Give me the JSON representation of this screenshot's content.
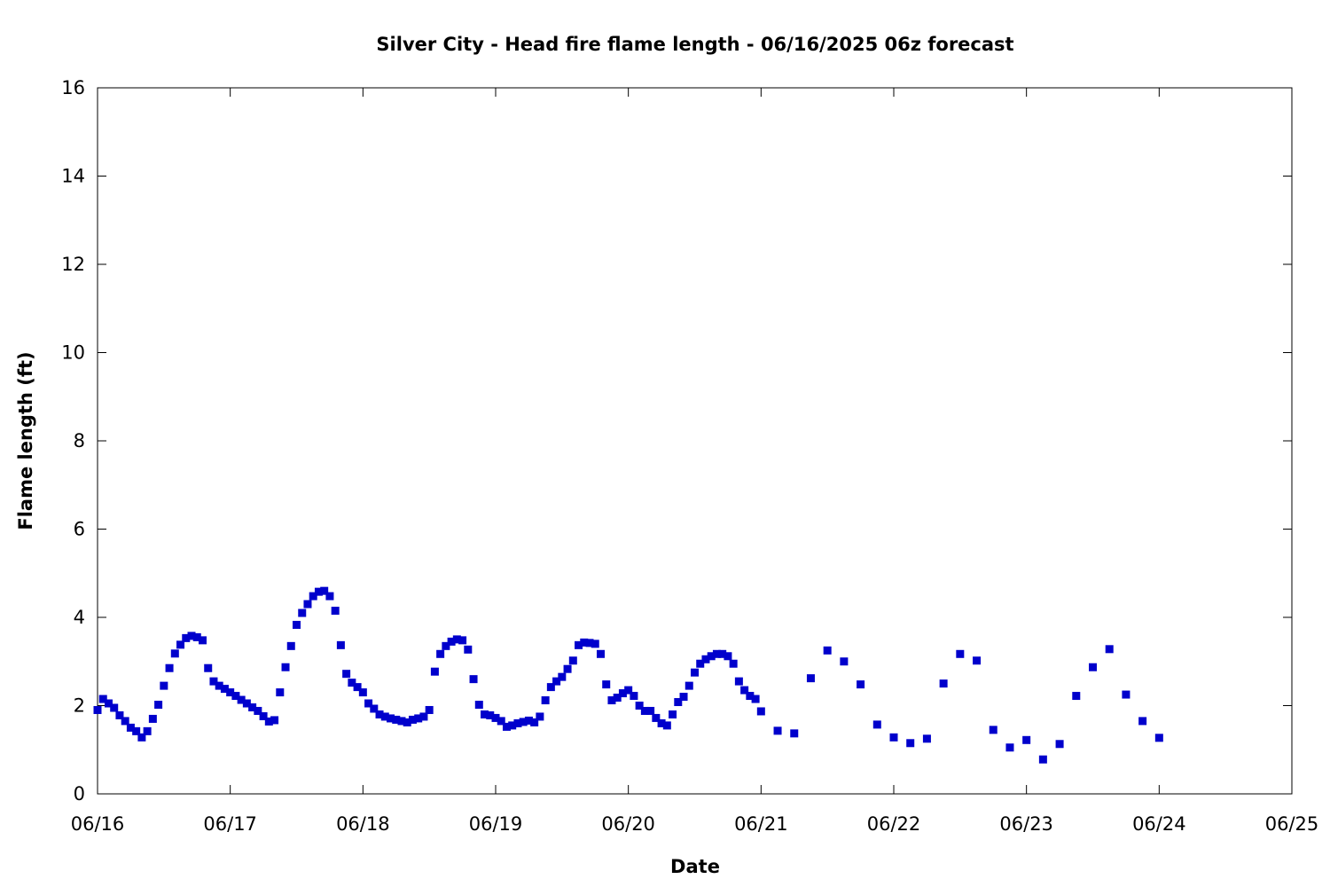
{
  "chart_data": {
    "type": "scatter",
    "title": "Silver City - Head fire flame length - 06/16/2025 06z forecast",
    "xlabel": "Date",
    "ylabel": "Flame length (ft)",
    "xlim": [
      "06/16",
      "06/25"
    ],
    "ylim": [
      0,
      16
    ],
    "x_ticks": [
      "06/16",
      "06/17",
      "06/18",
      "06/19",
      "06/20",
      "06/21",
      "06/22",
      "06/23",
      "06/24",
      "06/25"
    ],
    "y_ticks": [
      0,
      2,
      4,
      6,
      8,
      10,
      12,
      14,
      16
    ],
    "grid": false,
    "marker_color": "#0000cc",
    "series": [
      {
        "x": [
          "06/16 00z",
          "06/16 01z",
          "06/16 02z",
          "06/16 03z",
          "06/16 04z",
          "06/16 05z",
          "06/16 06z",
          "06/16 07z",
          "06/16 08z",
          "06/16 09z",
          "06/16 10z",
          "06/16 11z",
          "06/16 12z",
          "06/16 13z",
          "06/16 14z",
          "06/16 15z",
          "06/16 16z",
          "06/16 17z",
          "06/16 18z",
          "06/16 19z",
          "06/16 20z",
          "06/16 21z",
          "06/16 22z",
          "06/16 23z",
          "06/17 00z",
          "06/17 01z",
          "06/17 02z",
          "06/17 03z",
          "06/17 04z",
          "06/17 05z",
          "06/17 06z",
          "06/17 07z",
          "06/17 08z",
          "06/17 09z",
          "06/17 10z",
          "06/17 11z",
          "06/17 12z",
          "06/17 13z",
          "06/17 14z",
          "06/17 15z",
          "06/17 16z",
          "06/17 17z",
          "06/17 18z",
          "06/17 19z",
          "06/17 20z",
          "06/17 21z",
          "06/17 22z",
          "06/17 23z",
          "06/18 00z",
          "06/18 01z",
          "06/18 02z",
          "06/18 03z",
          "06/18 04z",
          "06/18 05z",
          "06/18 06z",
          "06/18 07z",
          "06/18 08z",
          "06/18 09z",
          "06/18 10z",
          "06/18 11z",
          "06/18 12z",
          "06/18 13z",
          "06/18 14z",
          "06/18 15z",
          "06/18 16z",
          "06/18 17z",
          "06/18 18z",
          "06/18 19z",
          "06/18 20z",
          "06/18 21z",
          "06/18 22z",
          "06/18 23z",
          "06/19 00z",
          "06/19 01z",
          "06/19 02z",
          "06/19 03z",
          "06/19 04z",
          "06/19 05z",
          "06/19 06z",
          "06/19 07z",
          "06/19 08z",
          "06/19 09z",
          "06/19 10z",
          "06/19 11z",
          "06/19 12z",
          "06/19 13z",
          "06/19 14z",
          "06/19 15z",
          "06/19 16z",
          "06/19 17z",
          "06/19 18z",
          "06/19 19z",
          "06/19 20z",
          "06/19 21z",
          "06/19 22z",
          "06/19 23z",
          "06/20 00z",
          "06/20 01z",
          "06/20 02z",
          "06/20 03z",
          "06/20 04z",
          "06/20 05z",
          "06/20 06z",
          "06/20 07z",
          "06/20 08z",
          "06/20 09z",
          "06/20 10z",
          "06/20 11z",
          "06/20 12z",
          "06/20 13z",
          "06/20 14z",
          "06/20 15z",
          "06/20 16z",
          "06/20 17z",
          "06/20 18z",
          "06/20 19z",
          "06/20 20z",
          "06/20 21z",
          "06/20 22z",
          "06/20 23z",
          "06/21 00z",
          "06/21 03z",
          "06/21 06z",
          "06/21 09z",
          "06/21 12z",
          "06/21 15z",
          "06/21 18z",
          "06/21 21z",
          "06/22 00z",
          "06/22 03z",
          "06/22 06z",
          "06/22 09z",
          "06/22 12z",
          "06/22 15z",
          "06/22 18z",
          "06/22 21z",
          "06/23 00z",
          "06/23 03z",
          "06/23 06z",
          "06/23 09z",
          "06/23 12z",
          "06/23 15z",
          "06/23 18z",
          "06/23 21z",
          "06/24 00z"
        ],
        "values": [
          1.9,
          2.15,
          2.05,
          1.95,
          1.78,
          1.65,
          1.5,
          1.42,
          1.28,
          1.42,
          1.7,
          2.02,
          2.45,
          2.85,
          3.18,
          3.38,
          3.53,
          3.58,
          3.55,
          3.48,
          2.85,
          2.55,
          2.45,
          2.38,
          2.3,
          2.22,
          2.13,
          2.05,
          1.96,
          1.88,
          1.76,
          1.64,
          1.67,
          2.3,
          2.87,
          3.35,
          3.83,
          4.1,
          4.3,
          4.48,
          4.58,
          4.6,
          4.48,
          4.15,
          3.37,
          2.72,
          2.52,
          2.42,
          2.3,
          2.05,
          1.93,
          1.8,
          1.75,
          1.71,
          1.68,
          1.65,
          1.62,
          1.68,
          1.71,
          1.75,
          1.9,
          2.77,
          3.17,
          3.35,
          3.45,
          3.5,
          3.48,
          3.27,
          2.6,
          2.02,
          1.8,
          1.78,
          1.72,
          1.65,
          1.52,
          1.55,
          1.6,
          1.63,
          1.66,
          1.62,
          1.75,
          2.12,
          2.42,
          2.55,
          2.65,
          2.83,
          3.02,
          3.37,
          3.43,
          3.42,
          3.4,
          3.17,
          2.48,
          2.12,
          2.18,
          2.28,
          2.35,
          2.22,
          2.0,
          1.88,
          1.88,
          1.72,
          1.6,
          1.55,
          1.8,
          2.08,
          2.2,
          2.45,
          2.75,
          2.95,
          3.05,
          3.12,
          3.17,
          3.17,
          3.12,
          2.95,
          2.55,
          2.35,
          2.22,
          2.15,
          1.87,
          1.43,
          1.37,
          2.62,
          3.25,
          3.0,
          2.48,
          1.57,
          1.28,
          1.15,
          1.25,
          2.5,
          3.17,
          3.02,
          1.45,
          1.05,
          1.22,
          0.78,
          1.13,
          2.22,
          2.87,
          3.28,
          2.25,
          1.65,
          1.27
        ]
      }
    ]
  }
}
